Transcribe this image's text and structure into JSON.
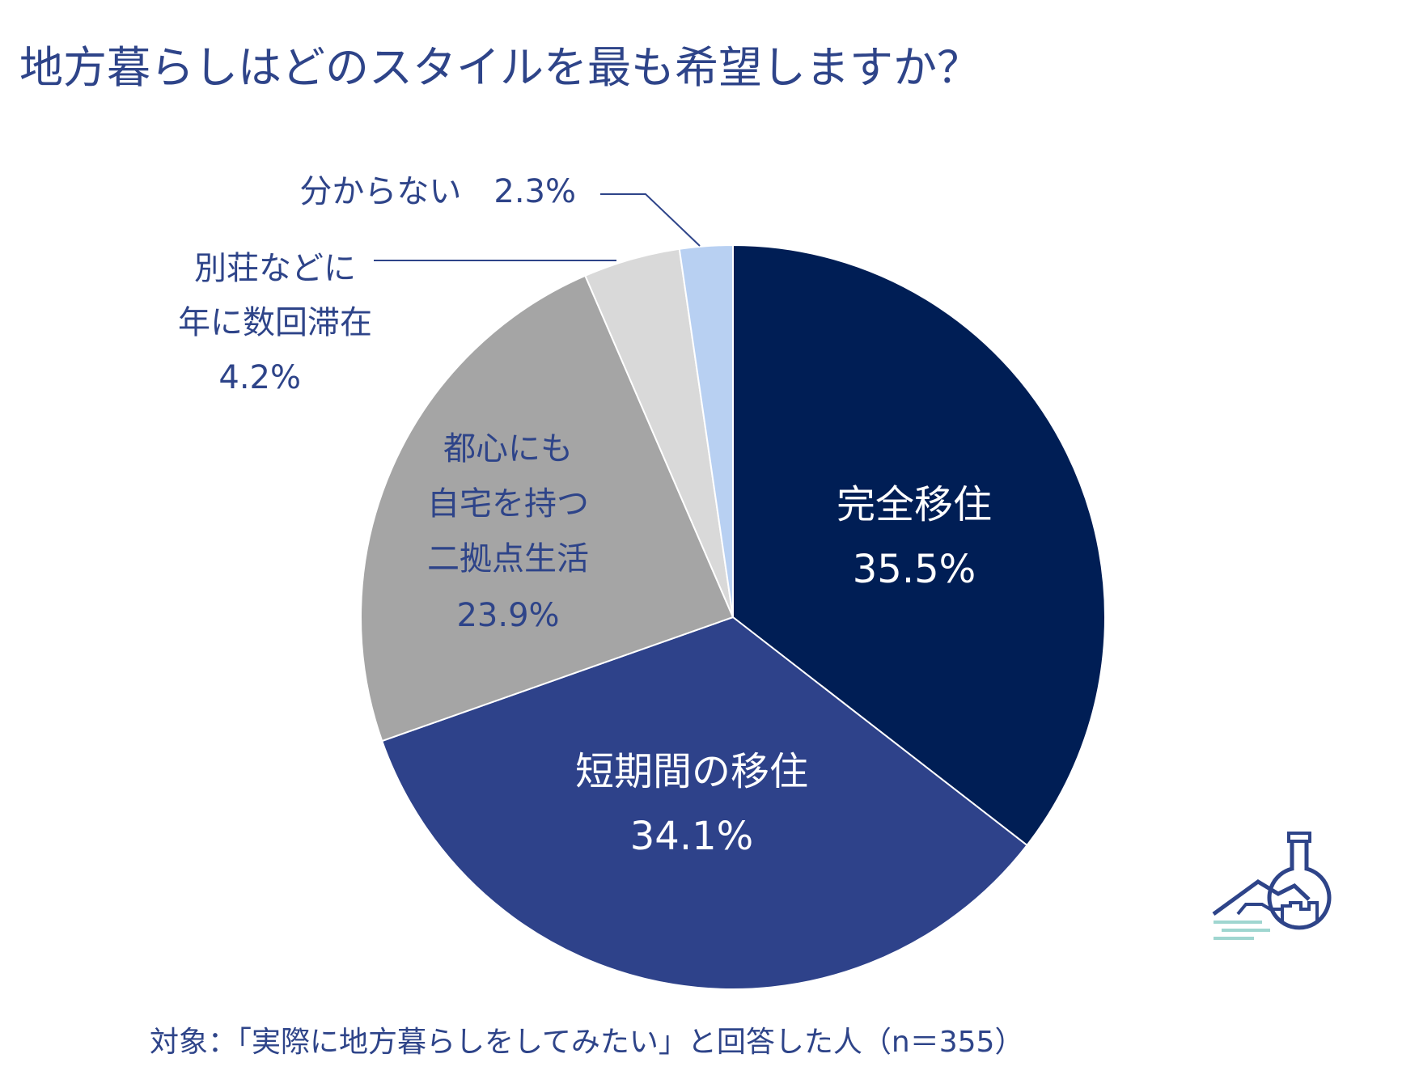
{
  "chart_data": {
    "type": "pie",
    "title": "地方暮らしはどのスタイルを最も希望しますか？",
    "footnote": "対象：「実際に地方暮らしをしてみたい」と回答した人（n＝355）",
    "slices": [
      {
        "label": "完全移住",
        "value": 35.5,
        "value_label": "35.5%",
        "color": "#001e55"
      },
      {
        "label": "短期間の移住",
        "value": 34.1,
        "value_label": "34.1%",
        "color": "#2e428a"
      },
      {
        "label": "都心にも自宅を持つ二拠点生活",
        "value": 23.9,
        "value_label": "23.9%",
        "color": "#a5a5a5"
      },
      {
        "label": "別荘などに年に数回滞在",
        "value": 4.2,
        "value_label": "4.2%",
        "color": "#d9d9d9"
      },
      {
        "label": "分からない",
        "value": 2.3,
        "value_label": "2.3%",
        "color": "#b8d0f2"
      }
    ]
  },
  "label_lines": {
    "s0": [
      "完全移住",
      "35.5%"
    ],
    "s1": [
      "短期間の移住",
      "34.1%"
    ],
    "s2": [
      "都心にも",
      "自宅を持つ",
      "二拠点生活",
      "23.9%"
    ],
    "s3": [
      "別荘などに",
      "年に数回滞在",
      "4.2%"
    ],
    "s4": [
      "分からない　2.3%"
    ]
  },
  "logo": {
    "icon": "flask-landscape-logo",
    "colors": [
      "#2e4489",
      "#9fd6d0"
    ]
  }
}
